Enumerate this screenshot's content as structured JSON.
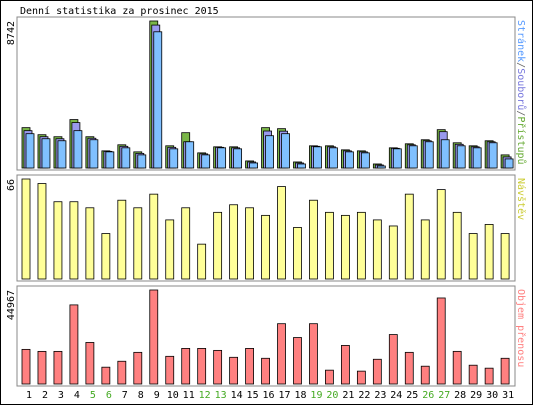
{
  "chart_data": [
    {
      "type": "bar",
      "title": "Denní statistika za prosinec 2015",
      "ylim": [
        0,
        8742
      ],
      "yticks": [
        8742
      ],
      "legend_separator": "/",
      "series": [
        {
          "name": "Přístupů",
          "color": "#7ab648",
          "text_color": "#66aa33",
          "values": [
            2400,
            1980,
            1860,
            2880,
            1860,
            1020,
            1380,
            960,
            8742,
            1320,
            2100,
            900,
            1260,
            1260,
            420,
            2400,
            2340,
            360,
            1320,
            1320,
            1080,
            1020,
            240,
            1200,
            1440,
            1680,
            2280,
            1500,
            1320,
            1620,
            780
          ]
        },
        {
          "name": "Souborů",
          "color": "#9999ee",
          "text_color": "#7777dd",
          "values": [
            2220,
            1860,
            1740,
            2700,
            1770,
            990,
            1290,
            870,
            8500,
            1230,
            1560,
            840,
            1230,
            1200,
            360,
            2200,
            2190,
            300,
            1290,
            1260,
            1020,
            960,
            180,
            1170,
            1380,
            1620,
            2160,
            1410,
            1260,
            1560,
            660
          ]
        },
        {
          "name": "Stránek",
          "color": "#80c0ff",
          "text_color": "#5599ff",
          "values": [
            2040,
            1740,
            1620,
            2220,
            1680,
            960,
            1200,
            780,
            8100,
            1140,
            1560,
            780,
            1200,
            1140,
            300,
            1920,
            2040,
            240,
            1260,
            1200,
            960,
            900,
            120,
            1140,
            1320,
            1560,
            1680,
            1320,
            1200,
            1500,
            540
          ]
        }
      ]
    },
    {
      "type": "bar",
      "ylim": [
        0,
        66
      ],
      "yticks": [
        66
      ],
      "series": [
        {
          "name": "Návštěv",
          "color": "#ffff99",
          "text_color": "#cccc33",
          "values": [
            66,
            63,
            51,
            51,
            47,
            30,
            52,
            47,
            56,
            39,
            47,
            23,
            44,
            49,
            47,
            42,
            61,
            34,
            52,
            44,
            42,
            44,
            39,
            35,
            56,
            39,
            59,
            44,
            30,
            36,
            30
          ]
        }
      ]
    },
    {
      "type": "bar",
      "ylim": [
        0,
        44967
      ],
      "yticks": [
        44967
      ],
      "categories": [
        "1",
        "2",
        "3",
        "4",
        "5",
        "6",
        "7",
        "8",
        "9",
        "10",
        "11",
        "12",
        "13",
        "14",
        "15",
        "16",
        "17",
        "18",
        "19",
        "20",
        "21",
        "22",
        "23",
        "24",
        "25",
        "26",
        "27",
        "28",
        "29",
        "30",
        "31"
      ],
      "category_colors": [
        "#000",
        "#000",
        "#000",
        "#000",
        "#44aa22",
        "#44aa22",
        "#000",
        "#000",
        "#000",
        "#000",
        "#000",
        "#44aa22",
        "#44aa22",
        "#000",
        "#000",
        "#000",
        "#000",
        "#000",
        "#44aa22",
        "#44aa22",
        "#000",
        "#000",
        "#000",
        "#000",
        "#000",
        "#44aa22",
        "#44aa22",
        "#000",
        "#000",
        "#000",
        "#000"
      ],
      "series": [
        {
          "name": "Objem přenosu",
          "color": "#ff8080",
          "text_color": "#ff8080",
          "values": [
            16560,
            15600,
            15600,
            37840,
            19870,
            8040,
            10880,
            15140,
            44967,
            13240,
            17030,
            17030,
            16080,
            12770,
            17030,
            12300,
            28850,
            22230,
            28850,
            6620,
            18450,
            6150,
            11830,
            23650,
            15140,
            8510,
            41150,
            15610,
            8990,
            7570,
            12300
          ]
        }
      ]
    }
  ]
}
